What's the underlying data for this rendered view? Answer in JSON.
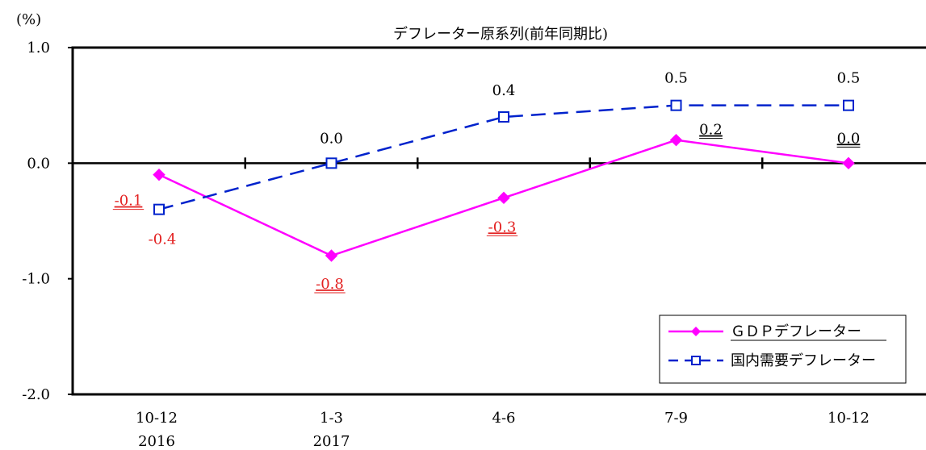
{
  "chart_data": {
    "type": "line",
    "title": "デフレーター原系列(前年同期比)",
    "y_unit": "(%)",
    "categories": [
      "10-12",
      "1-3",
      "4-6",
      "7-9",
      "10-12"
    ],
    "year_labels": [
      "2016",
      "2017",
      "",
      "",
      ""
    ],
    "ylim": [
      -2.0,
      1.0
    ],
    "yticks": [
      "1.0",
      "0.0",
      "-1.0",
      "-2.0"
    ],
    "grid": false,
    "legend_position": "bottom-right",
    "series": [
      {
        "name": "ＧＤＰデフレーター",
        "values": [
          -0.1,
          -0.8,
          -0.3,
          0.2,
          0.0
        ],
        "value_labels": [
          "-0.1",
          "-0.8",
          "-0.3",
          "0.2",
          "0.0"
        ],
        "color": "#ff00ff",
        "marker": "diamond",
        "line_style": "solid"
      },
      {
        "name": "国内需要デフレーター",
        "values": [
          -0.4,
          0.0,
          0.4,
          0.5,
          0.5
        ],
        "value_labels": [
          "-0.4",
          "0.0",
          "0.4",
          "0.5",
          "0.5"
        ],
        "color": "#0022cc",
        "marker": "square",
        "line_style": "dashed"
      }
    ]
  }
}
